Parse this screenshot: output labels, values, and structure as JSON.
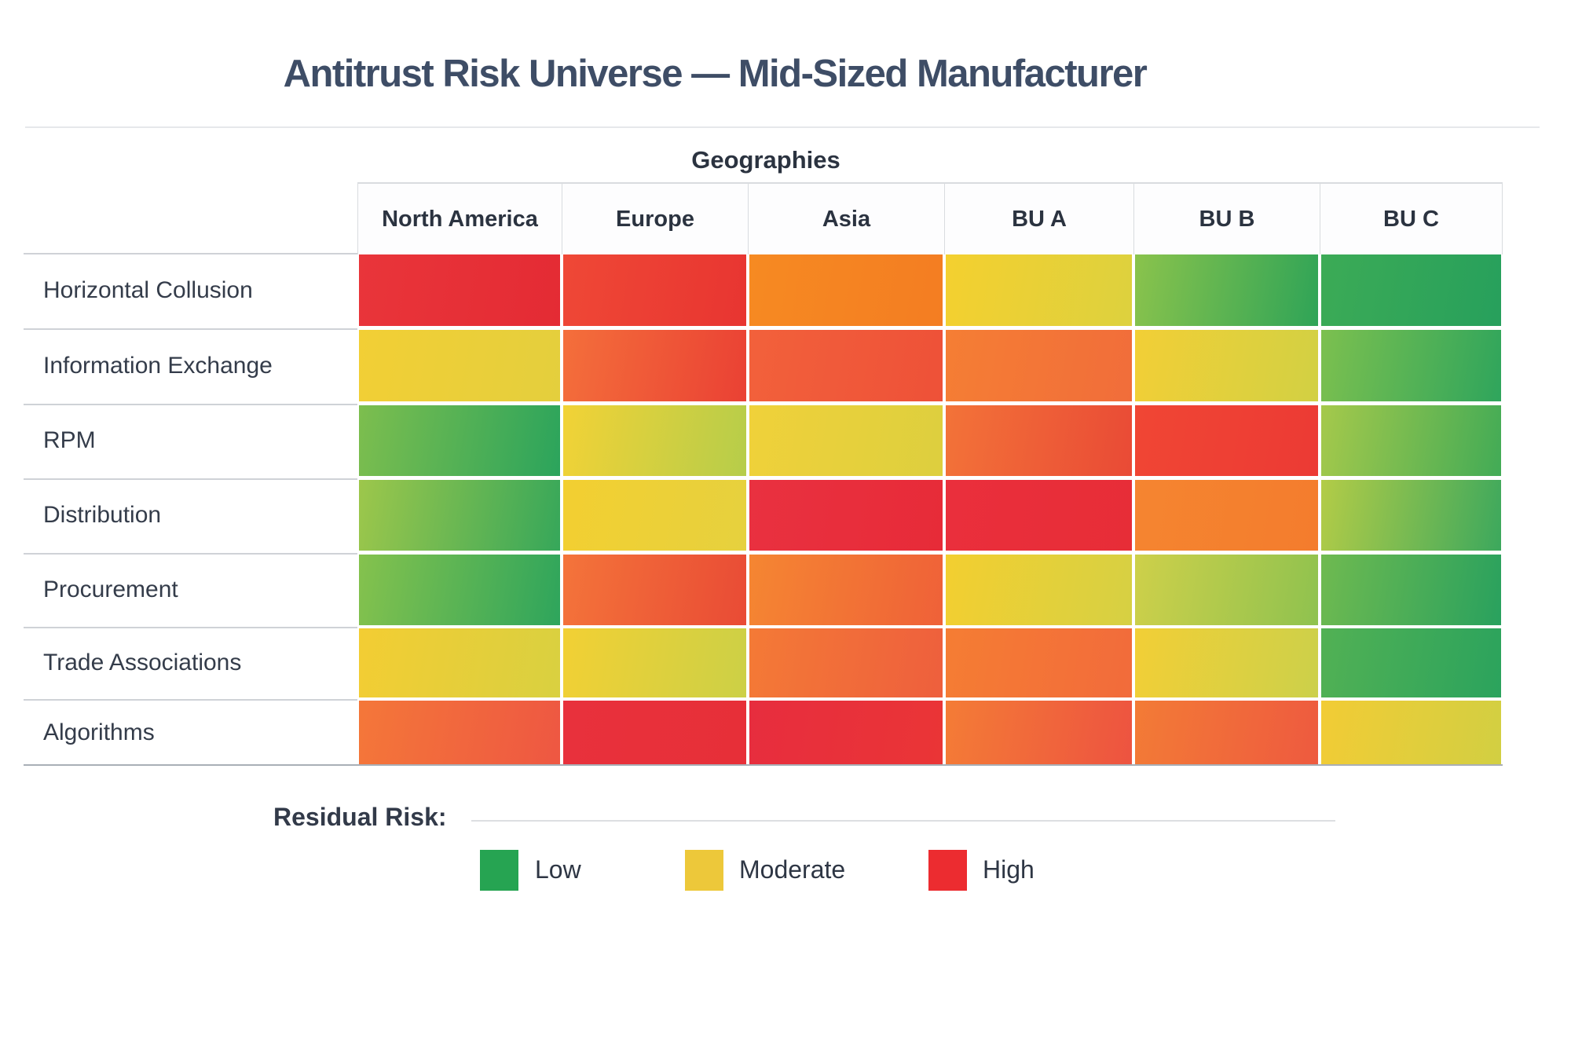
{
  "page": {
    "title": "Antitrust Risk Universe — Mid-Sized Manufacturer"
  },
  "table": {
    "group_header": "Geographies",
    "columns": [
      "North America",
      "Europe",
      "Asia",
      "BU A",
      "BU B",
      "BU C"
    ],
    "rows": [
      {
        "label": "Horizontal Collusion",
        "cells": [
          {
            "level": "high",
            "from": "#e9353a",
            "to": "#e42b34"
          },
          {
            "level": "high",
            "from": "#ef4836",
            "to": "#e83531"
          },
          {
            "level": "medium-high",
            "from": "#f68a22",
            "to": "#f47d22"
          },
          {
            "level": "moderate",
            "from": "#f4d02f",
            "to": "#ddd13e"
          },
          {
            "level": "low",
            "from": "#8ac34c",
            "to": "#2fa457"
          },
          {
            "level": "low",
            "from": "#3cab56",
            "to": "#27a05c"
          }
        ]
      },
      {
        "label": "Information Exchange",
        "cells": [
          {
            "level": "moderate",
            "from": "#f2cf35",
            "to": "#e4cf3d"
          },
          {
            "level": "medium-high",
            "from": "#f46f3b",
            "to": "#ea4134"
          },
          {
            "level": "medium-high",
            "from": "#f2613b",
            "to": "#ee5138"
          },
          {
            "level": "medium-high",
            "from": "#f57e34",
            "to": "#f16d3a"
          },
          {
            "level": "moderate",
            "from": "#f2cf36",
            "to": "#d2d043"
          },
          {
            "level": "low",
            "from": "#7cc04f",
            "to": "#2fa55c"
          }
        ]
      },
      {
        "label": "RPM",
        "cells": [
          {
            "level": "low",
            "from": "#7dbe4e",
            "to": "#2ba45c"
          },
          {
            "level": "moderate",
            "from": "#f2d236",
            "to": "#b6cd4a"
          },
          {
            "level": "moderate",
            "from": "#f0d13a",
            "to": "#ddcf3e"
          },
          {
            "level": "medium-high",
            "from": "#f37338",
            "to": "#e94a36"
          },
          {
            "level": "high",
            "from": "#f04634",
            "to": "#ec3a34"
          },
          {
            "level": "low-moderate",
            "from": "#a5c94b",
            "to": "#42ab56"
          }
        ]
      },
      {
        "label": "Distribution",
        "cells": [
          {
            "level": "low-moderate",
            "from": "#9dc74b",
            "to": "#36a75a"
          },
          {
            "level": "moderate",
            "from": "#f3cf31",
            "to": "#e6d13e"
          },
          {
            "level": "high",
            "from": "#e93140",
            "to": "#e72b38"
          },
          {
            "level": "high",
            "from": "#ea2f3c",
            "to": "#e72d37"
          },
          {
            "level": "medium-high",
            "from": "#f58530",
            "to": "#f47c2d"
          },
          {
            "level": "low-moderate",
            "from": "#b3cc47",
            "to": "#3ca85d"
          }
        ]
      },
      {
        "label": "Procurement",
        "cells": [
          {
            "level": "low",
            "from": "#85c24d",
            "to": "#2ea55c"
          },
          {
            "level": "medium-high",
            "from": "#f4743a",
            "to": "#e94b35"
          },
          {
            "level": "medium-high",
            "from": "#f58632",
            "to": "#ef6138"
          },
          {
            "level": "moderate",
            "from": "#f3cf30",
            "to": "#d6d043"
          },
          {
            "level": "low-moderate",
            "from": "#ced04a",
            "to": "#8fc24f"
          },
          {
            "level": "low",
            "from": "#6fba50",
            "to": "#29a15e"
          }
        ]
      },
      {
        "label": "Trade Associations",
        "cells": [
          {
            "level": "moderate",
            "from": "#f3cd33",
            "to": "#d9d040"
          },
          {
            "level": "moderate",
            "from": "#f2d034",
            "to": "#ccd046"
          },
          {
            "level": "medium-high",
            "from": "#f47a36",
            "to": "#ee5f3d"
          },
          {
            "level": "medium-high",
            "from": "#f57d33",
            "to": "#f26b3b"
          },
          {
            "level": "moderate",
            "from": "#f2cf36",
            "to": "#ccd04a"
          },
          {
            "level": "low",
            "from": "#52b154",
            "to": "#2ba35d"
          }
        ]
      },
      {
        "label": "Algorithms",
        "cells": [
          {
            "level": "medium-high",
            "from": "#f47739",
            "to": "#ee5742"
          },
          {
            "level": "high",
            "from": "#e8313c",
            "to": "#e72f38"
          },
          {
            "level": "high",
            "from": "#e72d3e",
            "to": "#ea3536"
          },
          {
            "level": "medium-high",
            "from": "#f47c36",
            "to": "#ed5340"
          },
          {
            "level": "medium-high",
            "from": "#f37b36",
            "to": "#ee5a3f"
          },
          {
            "level": "moderate",
            "from": "#f2cc35",
            "to": "#d2cf42"
          }
        ]
      }
    ]
  },
  "legend": {
    "label": "Residual Risk:",
    "items": [
      {
        "label": "Low",
        "color": "#26a452"
      },
      {
        "label": "Moderate",
        "color": "#edc83a"
      },
      {
        "label": "High",
        "color": "#ec2c30"
      }
    ]
  },
  "chart_data": {
    "type": "heatmap",
    "title": "Antitrust Risk Universe — Mid-Sized Manufacturer",
    "column_group_label": "Geographies",
    "columns": [
      "North America",
      "Europe",
      "Asia",
      "BU A",
      "BU B",
      "BU C"
    ],
    "rows": [
      "Horizontal Collusion",
      "Information Exchange",
      "RPM",
      "Distribution",
      "Procurement",
      "Trade Associations",
      "Algorithms"
    ],
    "levels": [
      [
        "high",
        "high",
        "medium-high",
        "moderate",
        "low",
        "low"
      ],
      [
        "moderate",
        "medium-high",
        "medium-high",
        "medium-high",
        "moderate",
        "low"
      ],
      [
        "low",
        "moderate",
        "moderate",
        "medium-high",
        "high",
        "low-moderate"
      ],
      [
        "low-moderate",
        "moderate",
        "high",
        "high",
        "medium-high",
        "low-moderate"
      ],
      [
        "low",
        "medium-high",
        "medium-high",
        "moderate",
        "low-moderate",
        "low"
      ],
      [
        "moderate",
        "moderate",
        "medium-high",
        "medium-high",
        "moderate",
        "low"
      ],
      [
        "medium-high",
        "high",
        "high",
        "medium-high",
        "medium-high",
        "moderate"
      ]
    ],
    "scores_1to5": [
      [
        5,
        5,
        4,
        3,
        1,
        1
      ],
      [
        3,
        4,
        4,
        4,
        3,
        1
      ],
      [
        1,
        3,
        3,
        4,
        5,
        2
      ],
      [
        2,
        3,
        5,
        5,
        4,
        2
      ],
      [
        1,
        4,
        4,
        3,
        2,
        1
      ],
      [
        3,
        3,
        4,
        4,
        3,
        1
      ],
      [
        4,
        5,
        5,
        4,
        4,
        3
      ]
    ],
    "legend": {
      "label": "Residual Risk:",
      "entries": [
        {
          "label": "Low",
          "color": "#26a452"
        },
        {
          "label": "Moderate",
          "color": "#edc83a"
        },
        {
          "label": "High",
          "color": "#ec2c30"
        }
      ]
    },
    "layout_hints": {
      "grid": "white gaps between cells",
      "legend_position": "bottom-left",
      "color_scale": "green-yellow-orange-red continuum with per-cell gradients"
    }
  }
}
